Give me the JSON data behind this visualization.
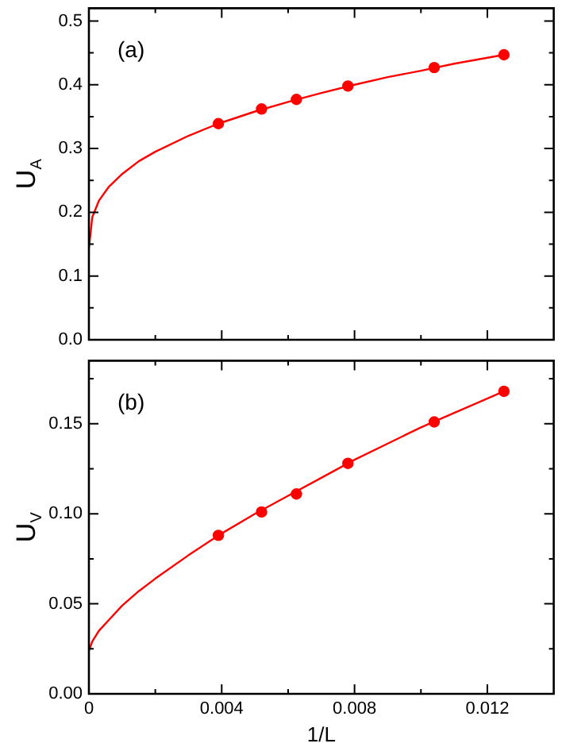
{
  "chart_data": [
    {
      "type": "line",
      "ylabel": "U$_{A}$",
      "annotations": [
        "(a)"
      ],
      "xlim": [
        0,
        0.014
      ],
      "xticks": [
        0,
        {
          "value": 0.002,
          "label": null
        },
        0.004,
        {
          "value": 0.006,
          "label": null
        },
        0.008,
        {
          "value": 0.01,
          "label": null
        },
        0.012
      ],
      "ylim": [
        0,
        0.52
      ],
      "yticks": [
        {
          "value": 0,
          "label": "0.0"
        },
        {
          "value": 0.05,
          "label": null
        },
        0.1,
        {
          "value": 0.15,
          "label": null
        },
        0.2,
        {
          "value": 0.25,
          "label": null
        },
        0.3,
        {
          "value": 0.35,
          "label": null
        },
        0.4,
        {
          "value": 0.45,
          "label": null
        },
        0.5
      ],
      "tick_labels": "y",
      "grid": false,
      "legend": false,
      "series": [
        {
          "type": "line",
          "color": "#ff0000",
          "marker": "none",
          "x": [
            0,
            0.0001,
            0.0003,
            0.0006,
            0.001,
            0.0015,
            0.002,
            0.003,
            0.0039,
            0.005,
            0.006,
            0.007,
            0.008,
            0.009,
            0.01,
            0.011,
            0.0125
          ],
          "values": [
            0.143,
            0.192,
            0.218,
            0.24,
            0.26,
            0.28,
            0.295,
            0.32,
            0.339,
            0.358,
            0.373,
            0.387,
            0.4,
            0.412,
            0.422,
            0.433,
            0.447
          ]
        },
        {
          "type": "scatter",
          "color": "#ff0000",
          "marker": "circle",
          "x": [
            0.0039,
            0.0052,
            0.00625,
            0.0078,
            0.0104,
            0.0125
          ],
          "values": [
            0.339,
            0.362,
            0.377,
            0.398,
            0.427,
            0.447
          ]
        }
      ]
    },
    {
      "type": "line",
      "ylabel": "U$_{V}$",
      "xlabel": "1/L",
      "annotations": [
        "(b)"
      ],
      "xlim": [
        0,
        0.014
      ],
      "xticks": [
        0,
        {
          "value": 0.002,
          "label": null
        },
        0.004,
        {
          "value": 0.006,
          "label": null
        },
        0.008,
        {
          "value": 0.01,
          "label": null
        },
        0.012
      ],
      "ylim": [
        0,
        0.185
      ],
      "yticks": [
        {
          "value": 0,
          "label": "0.00"
        },
        {
          "value": 0.025,
          "label": null
        },
        {
          "value": 0.05,
          "label": "0.05"
        },
        {
          "value": 0.075,
          "label": null
        },
        {
          "value": 0.1,
          "label": "0.10"
        },
        {
          "value": 0.125,
          "label": null
        },
        {
          "value": 0.15,
          "label": "0.15"
        },
        {
          "value": 0.175,
          "label": null
        }
      ],
      "grid": false,
      "legend": false,
      "series": [
        {
          "type": "line",
          "color": "#ff0000",
          "marker": "none",
          "x": [
            0,
            0.0001,
            0.0003,
            0.0006,
            0.001,
            0.0015,
            0.002,
            0.003,
            0.0039,
            0.005,
            0.006,
            0.007,
            0.008,
            0.009,
            0.01,
            0.011,
            0.0125
          ],
          "values": [
            0.024,
            0.029,
            0.035,
            0.041,
            0.049,
            0.057,
            0.064,
            0.077,
            0.088,
            0.1,
            0.11,
            0.12,
            0.13,
            0.139,
            0.148,
            0.156,
            0.168
          ]
        },
        {
          "type": "scatter",
          "color": "#ff0000",
          "marker": "circle",
          "x": [
            0.0039,
            0.0052,
            0.00625,
            0.0078,
            0.0104,
            0.0125
          ],
          "values": [
            0.088,
            0.101,
            0.111,
            0.128,
            0.151,
            0.168
          ]
        }
      ]
    }
  ]
}
